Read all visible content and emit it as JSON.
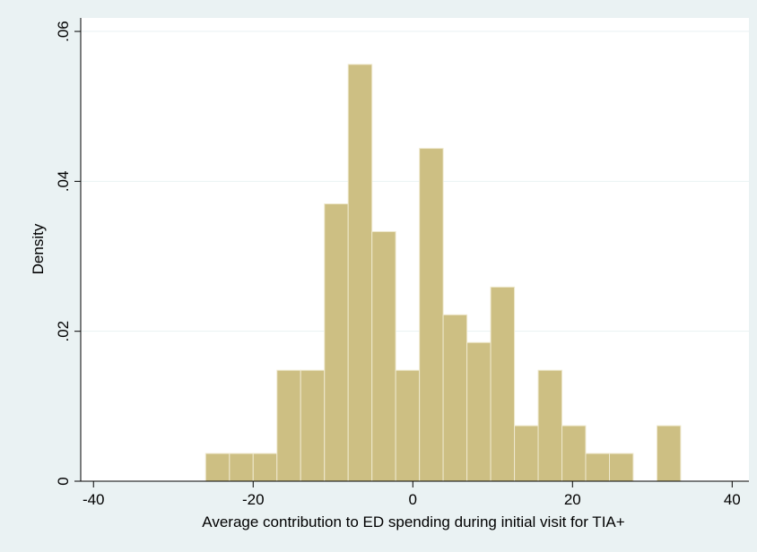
{
  "chart_data": {
    "type": "histogram",
    "x_label": "Average contribution to ED spending during initial visit for TIA+",
    "y_label": "Density",
    "bins": [
      -25.95,
      -22.97,
      -20.0,
      -17.02,
      -14.05,
      -11.07,
      -8.1,
      -5.12,
      -2.15,
      0.83,
      3.8,
      6.78,
      9.75,
      12.73,
      15.7,
      18.68,
      21.65,
      24.63,
      27.6,
      30.58,
      33.55
    ],
    "values": [
      0.0037,
      0.0037,
      0.0037,
      0.0148,
      0.0148,
      0.037,
      0.0556,
      0.0333,
      0.0148,
      0.0444,
      0.0222,
      0.0185,
      0.0259,
      0.0074,
      0.0148,
      0.0074,
      0.0037,
      0.0037,
      0,
      0.0074
    ],
    "color": "#cdbf83",
    "xlim": [
      -41.6,
      42.1
    ],
    "ylim": [
      0,
      0.0618
    ],
    "xticks": [
      -40,
      -20,
      0,
      20,
      40
    ],
    "yticks": [
      0,
      {
        "value": 0.02,
        "label": ".02"
      },
      {
        "value": 0.04,
        "label": ".04"
      },
      {
        "value": 0.06,
        "label": ".06"
      }
    ],
    "grid": true
  }
}
